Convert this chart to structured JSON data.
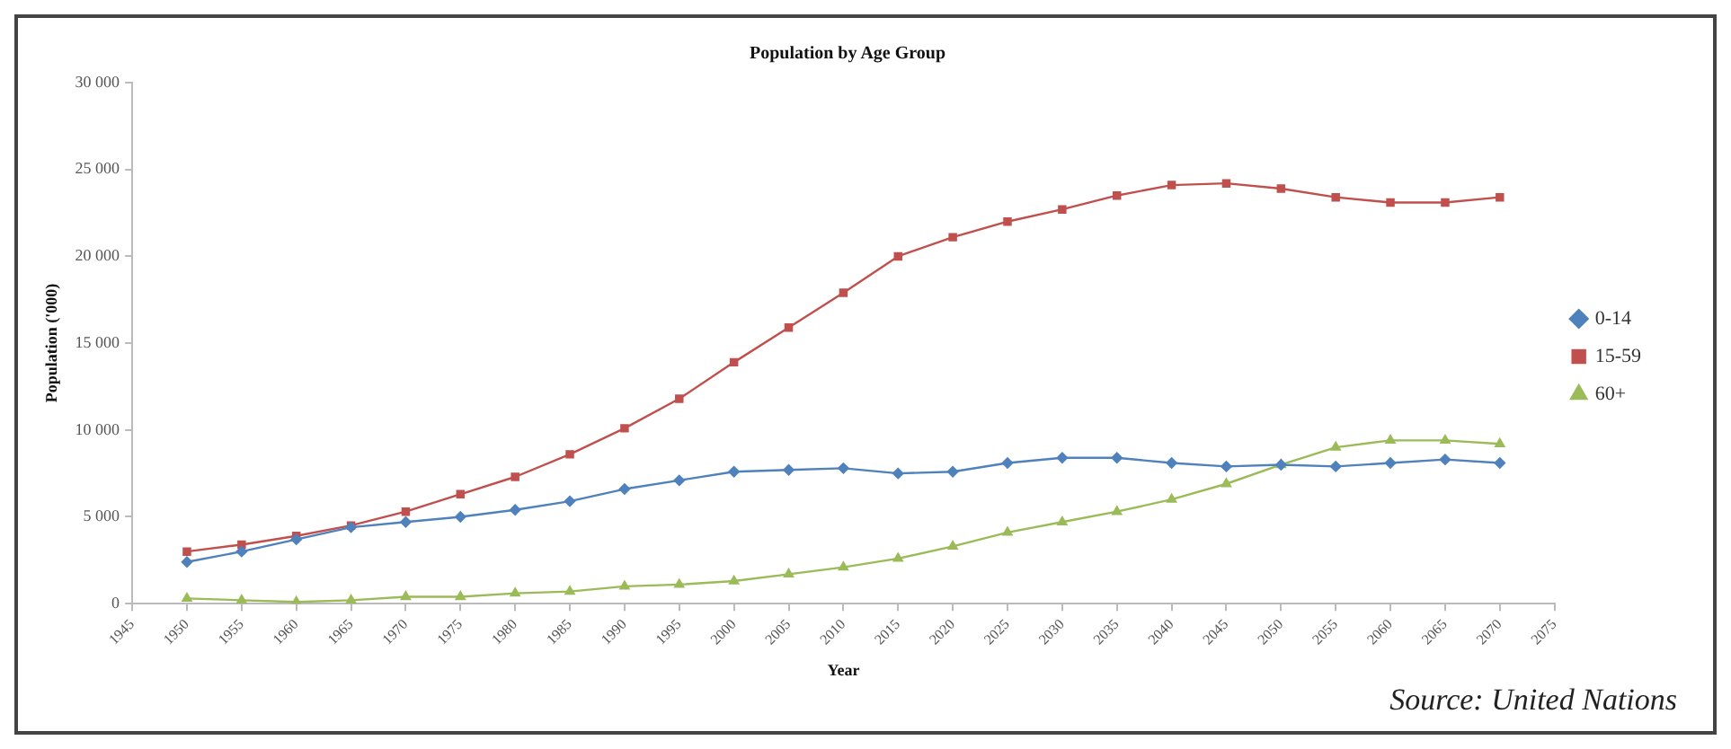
{
  "chart_data": {
    "type": "line",
    "title": "Population by Age Group",
    "xlabel": "Year",
    "ylabel": "Population ('000)",
    "x": [
      1950,
      1955,
      1960,
      1965,
      1970,
      1975,
      1980,
      1985,
      1990,
      1995,
      2000,
      2005,
      2010,
      2015,
      2020,
      2025,
      2030,
      2035,
      2040,
      2045,
      2050,
      2055,
      2060,
      2065,
      2070
    ],
    "series": [
      {
        "name": "0-14",
        "color": "#4f81bd",
        "marker": "diamond",
        "values": [
          2400,
          3000,
          3700,
          4400,
          4700,
          5000,
          5400,
          5900,
          6600,
          7100,
          7600,
          7700,
          7800,
          7500,
          7600,
          8100,
          8400,
          8400,
          8100,
          7900,
          8000,
          7900,
          8100,
          8300,
          8100
        ]
      },
      {
        "name": "15-59",
        "color": "#c0504d",
        "marker": "square",
        "values": [
          3000,
          3400,
          3900,
          4500,
          5300,
          6300,
          7300,
          8600,
          10100,
          11800,
          13900,
          15900,
          17900,
          20000,
          21100,
          22000,
          22700,
          23500,
          24100,
          24200,
          23900,
          23400,
          23100,
          23100,
          23400
        ]
      },
      {
        "name": "60+",
        "color": "#9bbb59",
        "marker": "triangle",
        "values": [
          300,
          200,
          100,
          200,
          400,
          400,
          600,
          700,
          1000,
          1100,
          1300,
          1700,
          2100,
          2600,
          3300,
          4100,
          4700,
          5300,
          6000,
          6900,
          8000,
          9000,
          9400,
          9400,
          9200
        ]
      }
    ],
    "xlim": [
      1945,
      2075
    ],
    "xticks": [
      1945,
      1950,
      1955,
      1960,
      1965,
      1970,
      1975,
      1980,
      1985,
      1990,
      1995,
      2000,
      2005,
      2010,
      2015,
      2020,
      2025,
      2030,
      2035,
      2040,
      2045,
      2050,
      2055,
      2060,
      2065,
      2070,
      2075
    ],
    "ylim": [
      0,
      30000
    ],
    "yticks": [
      0,
      {
        "value": 5000,
        "label": "5 000"
      },
      {
        "value": 10000,
        "label": "10 000"
      },
      {
        "value": 15000,
        "label": "15 000"
      },
      {
        "value": 20000,
        "label": "20 000"
      },
      {
        "value": 25000,
        "label": "25 000"
      },
      {
        "value": 30000,
        "label": "30 000"
      }
    ],
    "grid": false,
    "legend": "right",
    "line_style": "solid",
    "annotations": [
      "Source: United Nations"
    ]
  }
}
